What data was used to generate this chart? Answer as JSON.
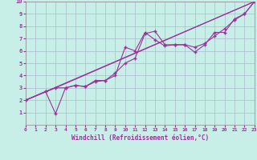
{
  "xlabel": "Windchill (Refroidissement éolien,°C)",
  "bg_color": "#c8eee8",
  "grid_color": "#aabbcc",
  "line_color": "#993399",
  "xlim": [
    0,
    23
  ],
  "ylim": [
    0,
    10
  ],
  "xticks": [
    0,
    1,
    2,
    3,
    4,
    5,
    6,
    7,
    8,
    9,
    10,
    11,
    12,
    13,
    14,
    15,
    16,
    17,
    18,
    19,
    20,
    21,
    22,
    23
  ],
  "yticks": [
    1,
    2,
    3,
    4,
    5,
    6,
    7,
    8,
    9,
    10
  ],
  "line1_x": [
    0,
    2,
    3,
    4,
    5,
    6,
    7,
    8,
    9,
    10,
    11,
    12,
    13,
    14,
    15,
    16,
    17,
    18,
    19,
    20,
    21,
    22,
    23
  ],
  "line1_y": [
    2.0,
    2.7,
    0.9,
    3.0,
    3.2,
    3.1,
    3.5,
    3.6,
    4.0,
    6.3,
    6.0,
    7.5,
    6.9,
    6.4,
    6.5,
    6.5,
    5.9,
    6.5,
    7.5,
    7.5,
    8.6,
    9.0,
    10.0
  ],
  "line2_x": [
    0,
    2,
    3,
    4,
    5,
    6,
    7,
    8,
    9,
    10,
    11,
    12,
    13,
    14,
    15,
    16,
    17,
    18,
    19,
    20,
    21,
    22,
    23
  ],
  "line2_y": [
    2.0,
    2.7,
    3.0,
    3.0,
    3.2,
    3.1,
    3.6,
    3.6,
    4.2,
    5.0,
    5.4,
    7.4,
    7.6,
    6.5,
    6.5,
    6.5,
    6.3,
    6.6,
    7.2,
    7.8,
    8.5,
    9.0,
    10.0
  ],
  "line3_x": [
    0,
    23
  ],
  "line3_y": [
    2.0,
    10.0
  ],
  "line4_x": [
    0,
    3,
    23
  ],
  "line4_y": [
    2.0,
    3.0,
    10.0
  ]
}
